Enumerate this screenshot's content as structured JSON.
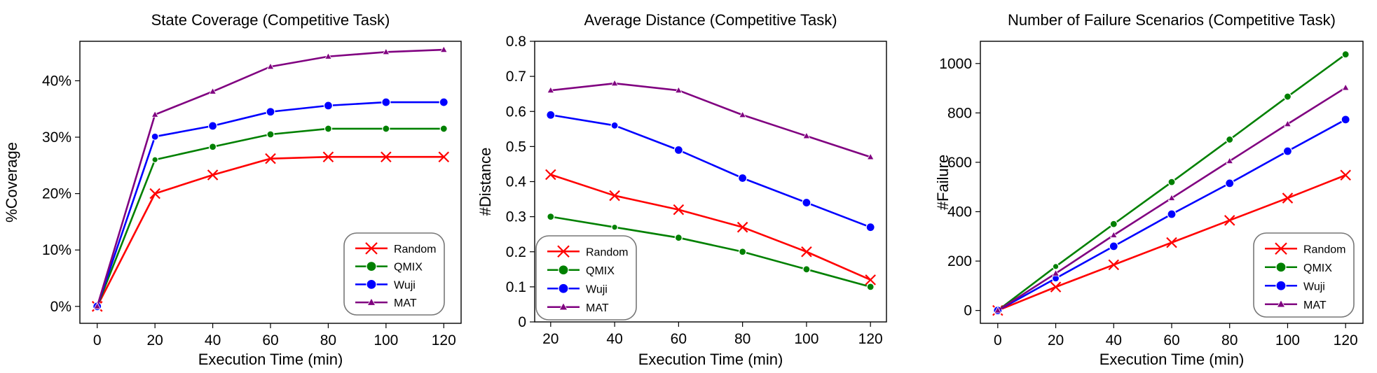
{
  "chart_data": [
    {
      "type": "line",
      "title": "State Coverage (Competitive Task)",
      "xlabel": "Execution Time (min)",
      "ylabel": "%Coverage",
      "x": [
        0,
        20,
        40,
        60,
        80,
        100,
        120
      ],
      "xlim": [
        -6,
        126
      ],
      "ylim": [
        -3,
        47
      ],
      "xticks": [
        0,
        20,
        40,
        60,
        80,
        100,
        120
      ],
      "xtick_labels": [
        "0",
        "20",
        "40",
        "60",
        "80",
        "100",
        "120"
      ],
      "yticks": [
        0,
        10,
        20,
        30,
        40
      ],
      "ytick_labels": [
        "0%",
        "10%",
        "20%",
        "30%",
        "40%"
      ],
      "legend_position": "lower-right",
      "grid": false,
      "series": [
        {
          "name": "Random",
          "values": [
            0,
            20,
            23.3,
            26.2,
            26.5,
            26.5,
            26.5
          ]
        },
        {
          "name": "QMIX",
          "values": [
            0,
            26,
            28.3,
            30.5,
            31.5,
            31.5,
            31.5
          ]
        },
        {
          "name": "Wuji",
          "values": [
            0,
            30.1,
            32,
            34.5,
            35.6,
            36.2,
            36.2
          ]
        },
        {
          "name": "MAT",
          "values": [
            0,
            34,
            38.1,
            42.5,
            44.3,
            45.1,
            45.5
          ]
        }
      ]
    },
    {
      "type": "line",
      "title": "Average Distance (Competitive Task)",
      "xlabel": "Execution Time (min)",
      "ylabel": "#Distance",
      "x": [
        20,
        40,
        60,
        80,
        100,
        120
      ],
      "xlim": [
        15,
        125
      ],
      "ylim": [
        0,
        0.8
      ],
      "xticks": [
        20,
        40,
        60,
        80,
        100,
        120
      ],
      "xtick_labels": [
        "20",
        "40",
        "60",
        "80",
        "100",
        "120"
      ],
      "yticks": [
        0,
        0.1,
        0.2,
        0.3,
        0.4,
        0.5,
        0.6,
        0.7,
        0.8
      ],
      "ytick_labels": [
        "0",
        "0.1",
        "0.2",
        "0.3",
        "0.4",
        "0.5",
        "0.6",
        "0.7",
        "0.8"
      ],
      "legend_position": "lower-left",
      "grid": false,
      "series": [
        {
          "name": "Random",
          "values": [
            0.42,
            0.36,
            0.32,
            0.27,
            0.2,
            0.12
          ]
        },
        {
          "name": "QMIX",
          "values": [
            0.3,
            0.27,
            0.24,
            0.2,
            0.15,
            0.1
          ]
        },
        {
          "name": "Wuji",
          "values": [
            0.59,
            0.56,
            0.49,
            0.41,
            0.34,
            0.27
          ]
        },
        {
          "name": "MAT",
          "values": [
            0.66,
            0.68,
            0.66,
            0.59,
            0.53,
            0.47
          ]
        }
      ]
    },
    {
      "type": "line",
      "title": "Number of Failure Scenarios (Competitive Task)",
      "xlabel": "Execution Time (min)",
      "ylabel": "#Failure",
      "x": [
        0,
        20,
        40,
        60,
        80,
        100,
        120
      ],
      "xlim": [
        -6,
        126
      ],
      "ylim": [
        -52,
        1090
      ],
      "xticks": [
        0,
        20,
        40,
        60,
        80,
        100,
        120
      ],
      "xtick_labels": [
        "0",
        "20",
        "40",
        "60",
        "80",
        "100",
        "120"
      ],
      "yticks": [
        0,
        200,
        400,
        600,
        800,
        1000
      ],
      "ytick_labels": [
        "0",
        "200",
        "400",
        "600",
        "800",
        "1000"
      ],
      "legend_position": "lower-right",
      "grid": false,
      "series": [
        {
          "name": "Random",
          "values": [
            0,
            95,
            185,
            275,
            365,
            455,
            548
          ]
        },
        {
          "name": "QMIX",
          "values": [
            0,
            178,
            350,
            520,
            692,
            866,
            1037
          ]
        },
        {
          "name": "Wuji",
          "values": [
            0,
            130,
            260,
            390,
            515,
            645,
            773
          ]
        },
        {
          "name": "MAT",
          "values": [
            0,
            150,
            305,
            455,
            605,
            755,
            902
          ]
        }
      ]
    }
  ],
  "styles": {
    "Random": {
      "color": "#ff0000",
      "marker": "x"
    },
    "QMIX": {
      "color": "#008000",
      "marker": "circle"
    },
    "Wuji": {
      "color": "#0000ff",
      "marker": "circle"
    },
    "MAT": {
      "color": "#800080",
      "marker": "triangle"
    }
  }
}
